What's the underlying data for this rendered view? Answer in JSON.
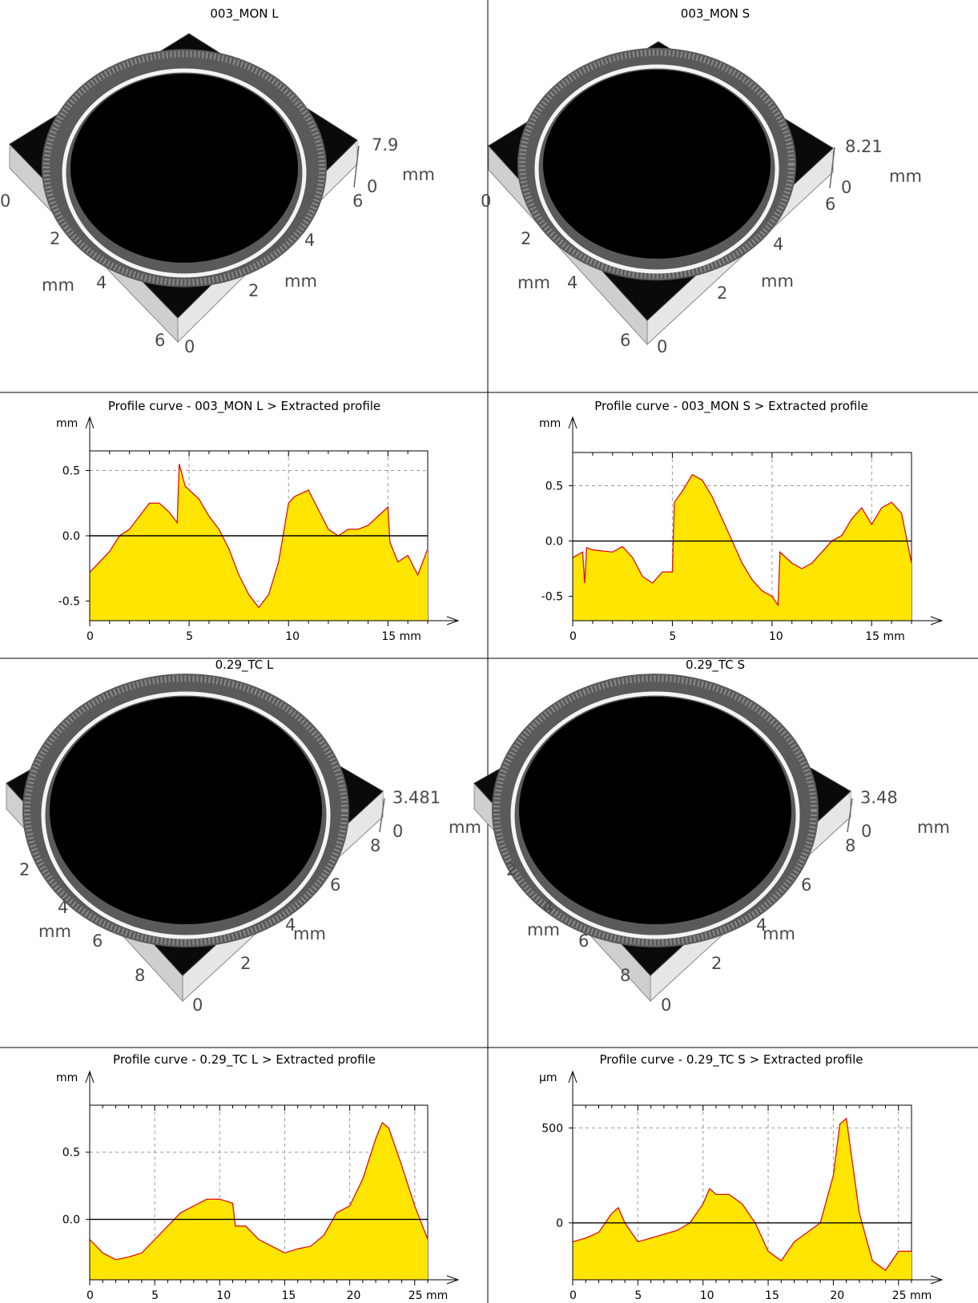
{
  "panels": [
    {
      "title": "003_MON L",
      "z_max": "7.9",
      "z_min": "0",
      "z_unit": "mm",
      "left_axis": [
        "0",
        "2",
        "4",
        "6"
      ],
      "left_unit": "mm",
      "right_axis": [
        "0",
        "2",
        "4",
        "6"
      ],
      "right_unit": "mm"
    },
    {
      "title": "003_MON S",
      "z_max": "8.21",
      "z_min": "0",
      "z_unit": "mm",
      "left_axis": [
        "0",
        "2",
        "4",
        "6"
      ],
      "left_unit": "mm",
      "right_axis": [
        "0",
        "2",
        "4",
        "6"
      ],
      "right_unit": "mm"
    },
    {
      "title": "0.29_TC L",
      "z_max": "3.481",
      "z_min": "0",
      "z_unit": "mm",
      "left_axis": [
        "2",
        "4",
        "6",
        "8"
      ],
      "left_unit": "mm",
      "right_axis": [
        "0",
        "2",
        "4",
        "6",
        "8"
      ],
      "right_unit": "mm"
    },
    {
      "title": "0.29_TC S",
      "z_max": "3.48",
      "z_min": "0",
      "z_unit": "mm",
      "left_axis": [
        "2",
        "4",
        "6",
        "8"
      ],
      "left_unit": "mm",
      "right_axis": [
        "0",
        "2",
        "4",
        "6",
        "8"
      ],
      "right_unit": "mm"
    }
  ],
  "chart_data": [
    {
      "type": "area",
      "title": "Profile curve - 003_MON L > Extracted profile",
      "xlabel": "mm",
      "ylabel": "mm",
      "xlim": [
        0,
        17
      ],
      "ylim": [
        -0.65,
        0.65
      ],
      "xticks": [
        0,
        5,
        10,
        15
      ],
      "yticks": [
        -0.5,
        0.0,
        0.5
      ],
      "ytick_labels": [
        "-0.5",
        "0.0",
        "0.5"
      ],
      "grid": true,
      "baseline": 0,
      "x": [
        0,
        0.5,
        1,
        1.5,
        2,
        2.5,
        3,
        3.5,
        4,
        4.4,
        4.5,
        4.8,
        5.5,
        6,
        6.5,
        7,
        7.5,
        8,
        8.5,
        9,
        9.5,
        10,
        10.3,
        11,
        11.5,
        12,
        12.5,
        13,
        13.5,
        14,
        14.5,
        15,
        15.1,
        15.5,
        16,
        16.5,
        17
      ],
      "y": [
        -0.28,
        -0.2,
        -0.12,
        0.0,
        0.05,
        0.15,
        0.25,
        0.25,
        0.18,
        0.1,
        0.55,
        0.38,
        0.28,
        0.15,
        0.05,
        -0.1,
        -0.3,
        -0.45,
        -0.55,
        -0.45,
        -0.2,
        0.25,
        0.3,
        0.35,
        0.2,
        0.05,
        0.0,
        0.05,
        0.05,
        0.08,
        0.15,
        0.22,
        -0.05,
        -0.2,
        -0.15,
        -0.3,
        -0.1
      ]
    },
    {
      "type": "area",
      "title": "Profile curve - 003_MON S > Extracted profile",
      "xlabel": "mm",
      "ylabel": "mm",
      "xlim": [
        0,
        17
      ],
      "ylim": [
        -0.72,
        0.8
      ],
      "xticks": [
        0,
        5,
        10,
        15
      ],
      "yticks": [
        -0.5,
        0.0,
        0.5
      ],
      "ytick_labels": [
        "-0.5",
        "0.0",
        "0.5"
      ],
      "grid": true,
      "baseline": 0,
      "x": [
        0,
        0.5,
        0.6,
        0.7,
        1,
        2,
        2.5,
        3,
        3.5,
        4,
        4.5,
        5,
        5.1,
        5.5,
        6,
        6.5,
        7,
        7.5,
        8,
        8.5,
        9,
        9.5,
        10,
        10.3,
        10.4,
        11,
        11.5,
        12,
        12.5,
        13,
        13.5,
        14,
        14.5,
        15,
        15.5,
        16,
        16.5,
        17
      ],
      "y": [
        -0.15,
        -0.1,
        -0.38,
        -0.06,
        -0.08,
        -0.1,
        -0.05,
        -0.15,
        -0.32,
        -0.38,
        -0.28,
        -0.28,
        0.35,
        0.45,
        0.6,
        0.55,
        0.4,
        0.2,
        0.0,
        -0.2,
        -0.35,
        -0.45,
        -0.5,
        -0.58,
        -0.1,
        -0.2,
        -0.25,
        -0.2,
        -0.1,
        0.0,
        0.05,
        0.2,
        0.3,
        0.15,
        0.3,
        0.35,
        0.25,
        -0.2
      ]
    },
    {
      "type": "area",
      "title": "Profile curve - 0.29_TC L > Extracted profile",
      "xlabel": "mm",
      "ylabel": "mm",
      "xlim": [
        0,
        26
      ],
      "ylim": [
        -0.45,
        0.85
      ],
      "xticks": [
        0,
        5,
        10,
        15,
        20,
        25
      ],
      "yticks": [
        0.0,
        0.5
      ],
      "ytick_labels": [
        "0.0",
        "0.5"
      ],
      "grid": true,
      "baseline": 0,
      "x": [
        0,
        1,
        2,
        3,
        4,
        5,
        6,
        7,
        8,
        9,
        10,
        11,
        11.2,
        12,
        13,
        14,
        15,
        16,
        17,
        18,
        19,
        20,
        21,
        22,
        22.5,
        23,
        24,
        25,
        26
      ],
      "y": [
        -0.15,
        -0.25,
        -0.3,
        -0.28,
        -0.25,
        -0.15,
        -0.05,
        0.05,
        0.1,
        0.15,
        0.15,
        0.12,
        -0.05,
        -0.05,
        -0.15,
        -0.2,
        -0.25,
        -0.22,
        -0.2,
        -0.12,
        0.05,
        0.1,
        0.3,
        0.6,
        0.72,
        0.68,
        0.4,
        0.1,
        -0.15
      ]
    },
    {
      "type": "area",
      "title": "Profile curve - 0.29_TC S > Extracted profile",
      "xlabel": "mm",
      "ylabel": "μm",
      "xlim": [
        0,
        26
      ],
      "ylim": [
        -300,
        620
      ],
      "xticks": [
        0,
        5,
        10,
        15,
        20,
        25
      ],
      "yticks": [
        0,
        500
      ],
      "ytick_labels": [
        "0",
        "500"
      ],
      "grid": true,
      "baseline": 0,
      "x": [
        0,
        1,
        2,
        3,
        3.5,
        4,
        5,
        6,
        7,
        8,
        9,
        10,
        10.5,
        11,
        12,
        13,
        14,
        15,
        16,
        17,
        18,
        19,
        20,
        20.5,
        21,
        22,
        23,
        24,
        25,
        26
      ],
      "y": [
        -100,
        -80,
        -50,
        50,
        80,
        0,
        -100,
        -80,
        -60,
        -40,
        0,
        100,
        180,
        150,
        150,
        100,
        0,
        -150,
        -200,
        -100,
        -50,
        0,
        250,
        520,
        550,
        50,
        -200,
        -250,
        -150,
        -150
      ]
    }
  ]
}
